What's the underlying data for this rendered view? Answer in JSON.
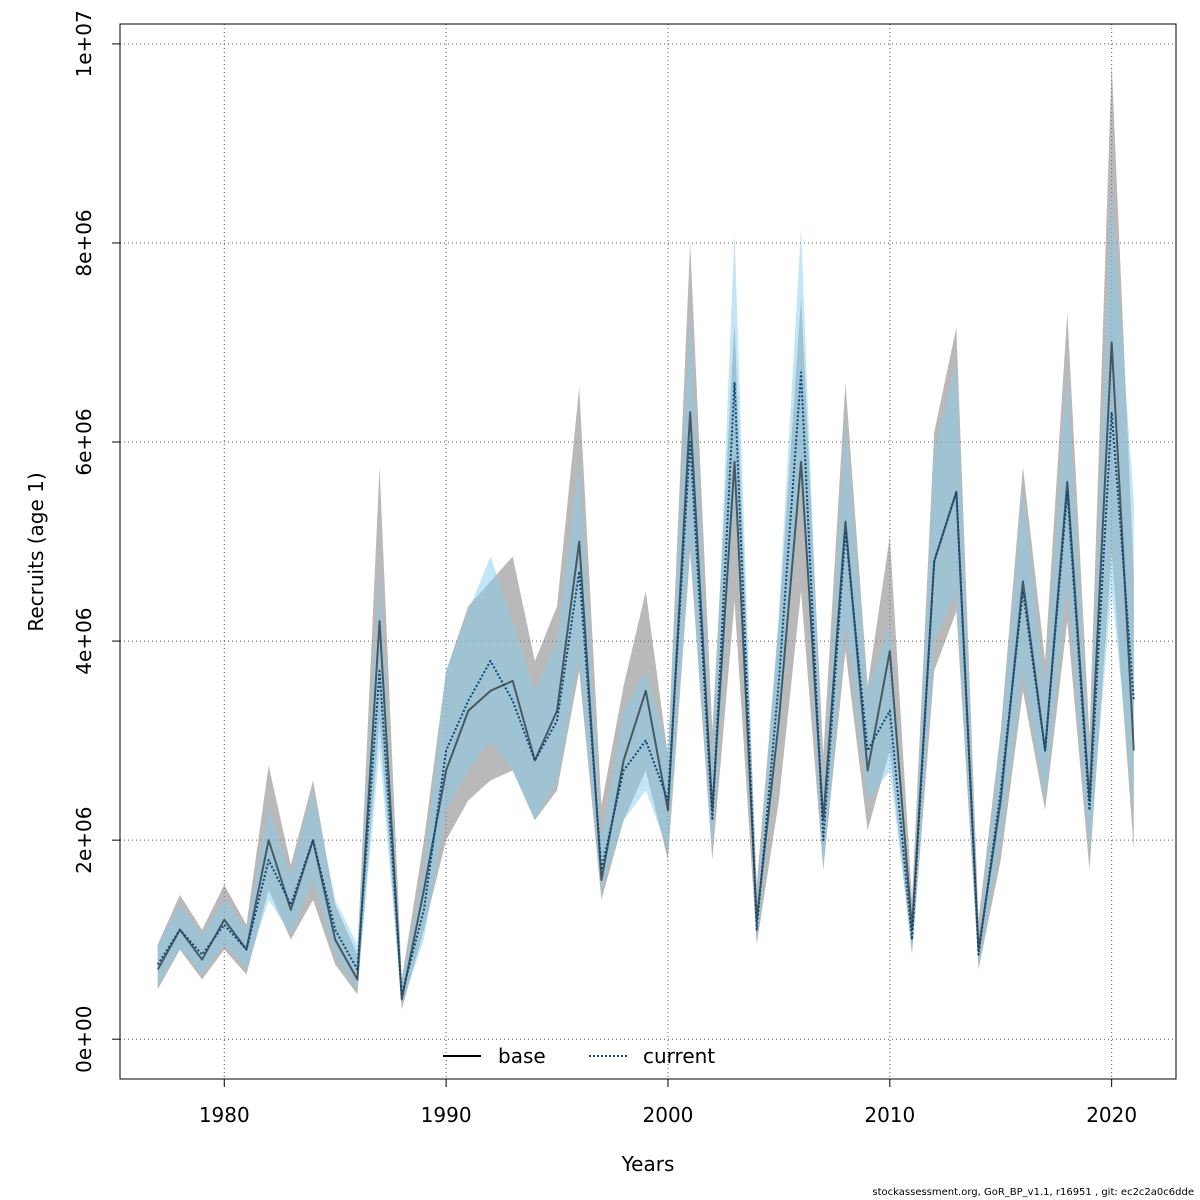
{
  "chart_data": {
    "type": "line",
    "title": "",
    "xlabel": "Years",
    "ylabel": "Recruits (age 1)",
    "xlim": [
      1975.3,
      1977
    ],
    "ylim": [
      -400000,
      10200000
    ],
    "x_ticks": [
      1980,
      1990,
      2000,
      2010,
      2020
    ],
    "x_tick_labels": [
      "1980",
      "1990",
      "2000",
      "2010",
      "2020"
    ],
    "y_ticks": [
      0,
      2000000,
      4000000,
      6000000,
      8000000,
      10000000
    ],
    "y_tick_labels": [
      "0e+00",
      "2e+06",
      "4e+06",
      "6e+06",
      "8e+06",
      "1e+07"
    ],
    "grid": true,
    "legend_position": "bottom-center",
    "x": [
      1977,
      1978,
      1979,
      1980,
      1981,
      1982,
      1983,
      1984,
      1985,
      1986,
      1987,
      1988,
      1989,
      1990,
      1991,
      1992,
      1993,
      1994,
      1995,
      1996,
      1997,
      1998,
      1999,
      2000,
      2001,
      2002,
      2003,
      2004,
      2005,
      2006,
      2007,
      2008,
      2009,
      2010,
      2011,
      2012,
      2013,
      2014,
      2015,
      2016,
      2017,
      2018,
      2019,
      2020,
      2021
    ],
    "series": [
      {
        "name": "base",
        "line_style": "solid",
        "line_color": "#000000",
        "band_color": "#808080",
        "values": [
          700000,
          1100000,
          800000,
          1200000,
          900000,
          2000000,
          1300000,
          2000000,
          1000000,
          600000,
          4200000,
          400000,
          1500000,
          2700000,
          3300000,
          3500000,
          3600000,
          2800000,
          3300000,
          5000000,
          1600000,
          2800000,
          3500000,
          2300000,
          6300000,
          2300000,
          5800000,
          1200000,
          3200000,
          5800000,
          2200000,
          5200000,
          2700000,
          3900000,
          1100000,
          4800000,
          5500000,
          900000,
          2400000,
          4600000,
          2900000,
          5600000,
          2400000,
          7000000,
          2900000
        ],
        "lower": [
          500000,
          900000,
          600000,
          900000,
          650000,
          1500000,
          1000000,
          1400000,
          750000,
          450000,
          3200000,
          300000,
          1100000,
          2000000,
          2400000,
          2600000,
          2700000,
          2200000,
          2500000,
          3700000,
          1400000,
          2200000,
          2700000,
          1800000,
          4900000,
          1800000,
          4400000,
          950000,
          2400000,
          4500000,
          1700000,
          3900000,
          2100000,
          2900000,
          850000,
          3700000,
          4300000,
          700000,
          1800000,
          3500000,
          2300000,
          4200000,
          1700000,
          4900000,
          1900000
        ],
        "upper": [
          950000,
          1450000,
          1100000,
          1550000,
          1150000,
          2750000,
          1750000,
          2600000,
          1350000,
          850000,
          5750000,
          600000,
          2000000,
          3700000,
          4350000,
          4600000,
          4850000,
          3800000,
          4350000,
          6550000,
          2350000,
          3550000,
          4500000,
          2850000,
          8000000,
          3100000,
          7200000,
          1550000,
          4200000,
          7450000,
          2850000,
          6600000,
          3550000,
          5050000,
          1400000,
          6100000,
          7150000,
          1200000,
          3100000,
          5750000,
          3800000,
          7300000,
          3050000,
          9800000,
          4650000
        ]
      },
      {
        "name": "current",
        "line_style": "dotted",
        "line_color": "#0a4a7a",
        "band_color": "#87cef0",
        "values": [
          750000,
          1100000,
          850000,
          1150000,
          900000,
          1800000,
          1350000,
          2000000,
          1100000,
          700000,
          3700000,
          450000,
          1300000,
          2900000,
          3400000,
          3800000,
          3400000,
          2800000,
          3200000,
          4700000,
          1700000,
          2700000,
          3000000,
          2400000,
          6000000,
          2200000,
          6600000,
          1100000,
          3600000,
          6700000,
          2000000,
          5100000,
          2900000,
          3300000,
          1000000,
          4800000,
          5500000,
          850000,
          2500000,
          4500000,
          2900000,
          5500000,
          2300000,
          6300000,
          3400000
        ],
        "lower": [
          550000,
          900000,
          650000,
          950000,
          700000,
          1400000,
          1050000,
          1600000,
          850000,
          500000,
          2900000,
          350000,
          1000000,
          2300000,
          2700000,
          3000000,
          2700000,
          2200000,
          2600000,
          3800000,
          1500000,
          2200000,
          2500000,
          1900000,
          5000000,
          1900000,
          5400000,
          1000000,
          3000000,
          5600000,
          1700000,
          4200000,
          2400000,
          2700000,
          900000,
          4000000,
          4500000,
          750000,
          2000000,
          3700000,
          2400000,
          4600000,
          1900000,
          4500000,
          2300000
        ],
        "upper": [
          950000,
          1350000,
          1050000,
          1400000,
          1100000,
          2300000,
          1650000,
          2500000,
          1400000,
          950000,
          4700000,
          560000,
          1700000,
          3700000,
          4300000,
          4850000,
          4200000,
          3500000,
          4000000,
          5800000,
          2000000,
          3300000,
          3700000,
          2900000,
          7300000,
          2650000,
          8100000,
          1300000,
          4300000,
          8150000,
          2400000,
          6200000,
          3500000,
          4150000,
          1200000,
          5900000,
          6800000,
          1000000,
          3000000,
          5500000,
          3500000,
          6700000,
          2800000,
          8500000,
          5400000
        ]
      }
    ],
    "footer": "stockassessment.org, GoR_BP_v1.1, r16951 , git: ec2c2a0c6dde"
  }
}
